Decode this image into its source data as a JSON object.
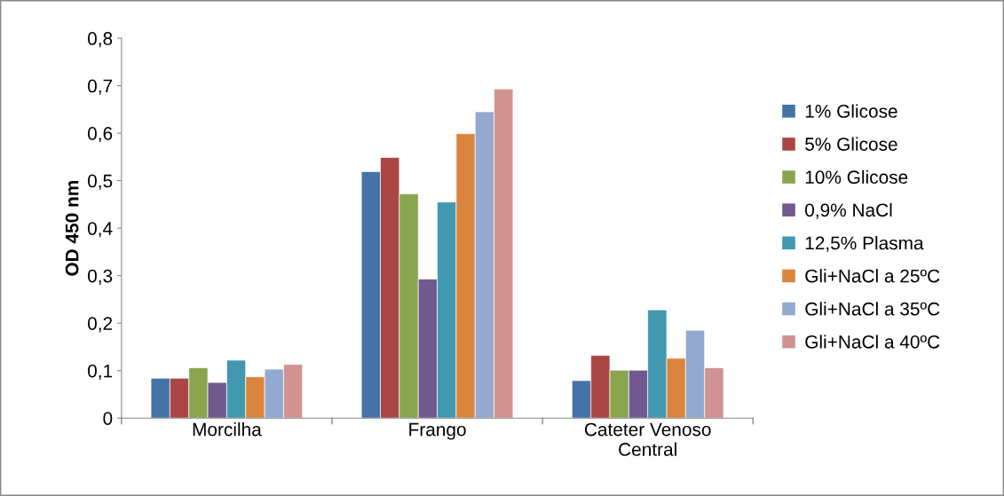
{
  "chart_data": {
    "type": "bar",
    "ylabel": "OD 450 nm",
    "categories": [
      "Morcilha",
      "Frango",
      "Cateter Venoso\nCentral"
    ],
    "series": [
      {
        "name": "1% Glicose",
        "color": "#4572a7",
        "values": [
          0.084,
          0.519,
          0.079
        ]
      },
      {
        "name": "5% Glicose",
        "color": "#aa4643",
        "values": [
          0.084,
          0.549,
          0.132
        ]
      },
      {
        "name": "10% Glicose",
        "color": "#89a54e",
        "values": [
          0.106,
          0.472,
          0.101
        ]
      },
      {
        "name": "0,9% NaCl",
        "color": "#71588f",
        "values": [
          0.075,
          0.293,
          0.101
        ]
      },
      {
        "name": "12,5% Plasma",
        "color": "#4198af",
        "values": [
          0.122,
          0.455,
          0.228
        ]
      },
      {
        "name": "Gli+NaCl a 25ºC",
        "color": "#db843d",
        "values": [
          0.087,
          0.599,
          0.126
        ]
      },
      {
        "name": "Gli+NaCl a 35ºC",
        "color": "#93a9cf",
        "values": [
          0.103,
          0.645,
          0.185
        ]
      },
      {
        "name": "Gli+NaCl a 40ºC",
        "color": "#d19392",
        "values": [
          0.113,
          0.693,
          0.106
        ]
      }
    ],
    "ylim": [
      0,
      0.8
    ],
    "yticks": [
      {
        "value": 0,
        "label": "0"
      },
      {
        "value": 0.1,
        "label": "0,1"
      },
      {
        "value": 0.2,
        "label": "0,2"
      },
      {
        "value": 0.3,
        "label": "0,3"
      },
      {
        "value": 0.4,
        "label": "0,4"
      },
      {
        "value": 0.5,
        "label": "0,5"
      },
      {
        "value": 0.6,
        "label": "0,6"
      },
      {
        "value": 0.7,
        "label": "0,7"
      },
      {
        "value": 0.8,
        "label": "0,8"
      }
    ],
    "grid": false,
    "legend": "right"
  }
}
